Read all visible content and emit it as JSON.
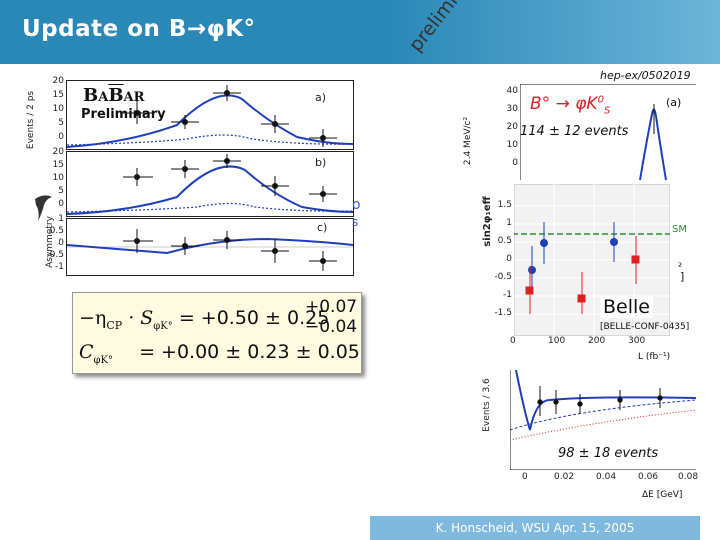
{
  "slide": {
    "title": "Update on B→φK°",
    "preliminary_stamp": "preliminary",
    "reference": "hep-ex/0502019",
    "footer": "K. Honscheid, WSU  Apr. 15, 2005"
  },
  "babar": {
    "logo_b": "B",
    "logo_a": "A",
    "logo_bar": "B",
    "logo_ar": "AR",
    "preliminary": "Preliminary",
    "ylabel_events": "Events / 2 ps",
    "ylabel_asym": "Asymmetry",
    "panel_a_label": "a)",
    "panel_b_label": "b)",
    "panel_c_label": "c)",
    "ticks_a": [
      "20",
      "15",
      "10",
      "5",
      "0"
    ],
    "ticks_b": [
      "20",
      "15",
      "10",
      "5",
      "0"
    ],
    "ticks_c": [
      "1",
      "0.5",
      "0",
      "-0.5",
      "-1"
    ]
  },
  "formula": {
    "line1_lhs": "−η",
    "line1_cp": "CP",
    "line1_s": "· S",
    "line1_sub": "φK°",
    "line1_value": "= +0.50 ± 0.25",
    "line1_up": "+0.07",
    "line1_down": "−0.04",
    "line2_c": "C",
    "line2_sub": "φK°",
    "line2_value": "= +0.00 ± 0.23 ± 0.05"
  },
  "mass_plot": {
    "label": "B° → φK",
    "label_sub": "S",
    "label_sup": "0",
    "panel_tag": "(a)",
    "events_text": "114 ± 12 events",
    "ylabel": "2.4 MeV/c²",
    "ticks": [
      "40",
      "30",
      "20",
      "10",
      "0"
    ]
  },
  "sin2phi_plot": {
    "ylabel": "sin2φ₁eff",
    "sm_label": "SM",
    "y_ticks": [
      "1.5",
      "1",
      "0.5",
      "0",
      "-0.5",
      "-1",
      "-1.5"
    ],
    "x_ticks": [
      "0",
      "100",
      "200",
      "300"
    ],
    "xlabel": "L (fb⁻¹)",
    "belle_label": "Belle",
    "belle_ref": "[BELLE-CONF-0435]",
    "side_mark_1": "²",
    "side_mark_2": "]"
  },
  "de_plot": {
    "ylabel": "Events / 3.6",
    "events_text": "98 ± 18 events",
    "x_ticks": [
      "0",
      "0.02",
      "0.04",
      "0.06",
      "0.08"
    ],
    "xlabel": "ΔE [GeV]"
  },
  "artifacts": {
    "blue_o": "o",
    "blue_s": "s"
  }
}
